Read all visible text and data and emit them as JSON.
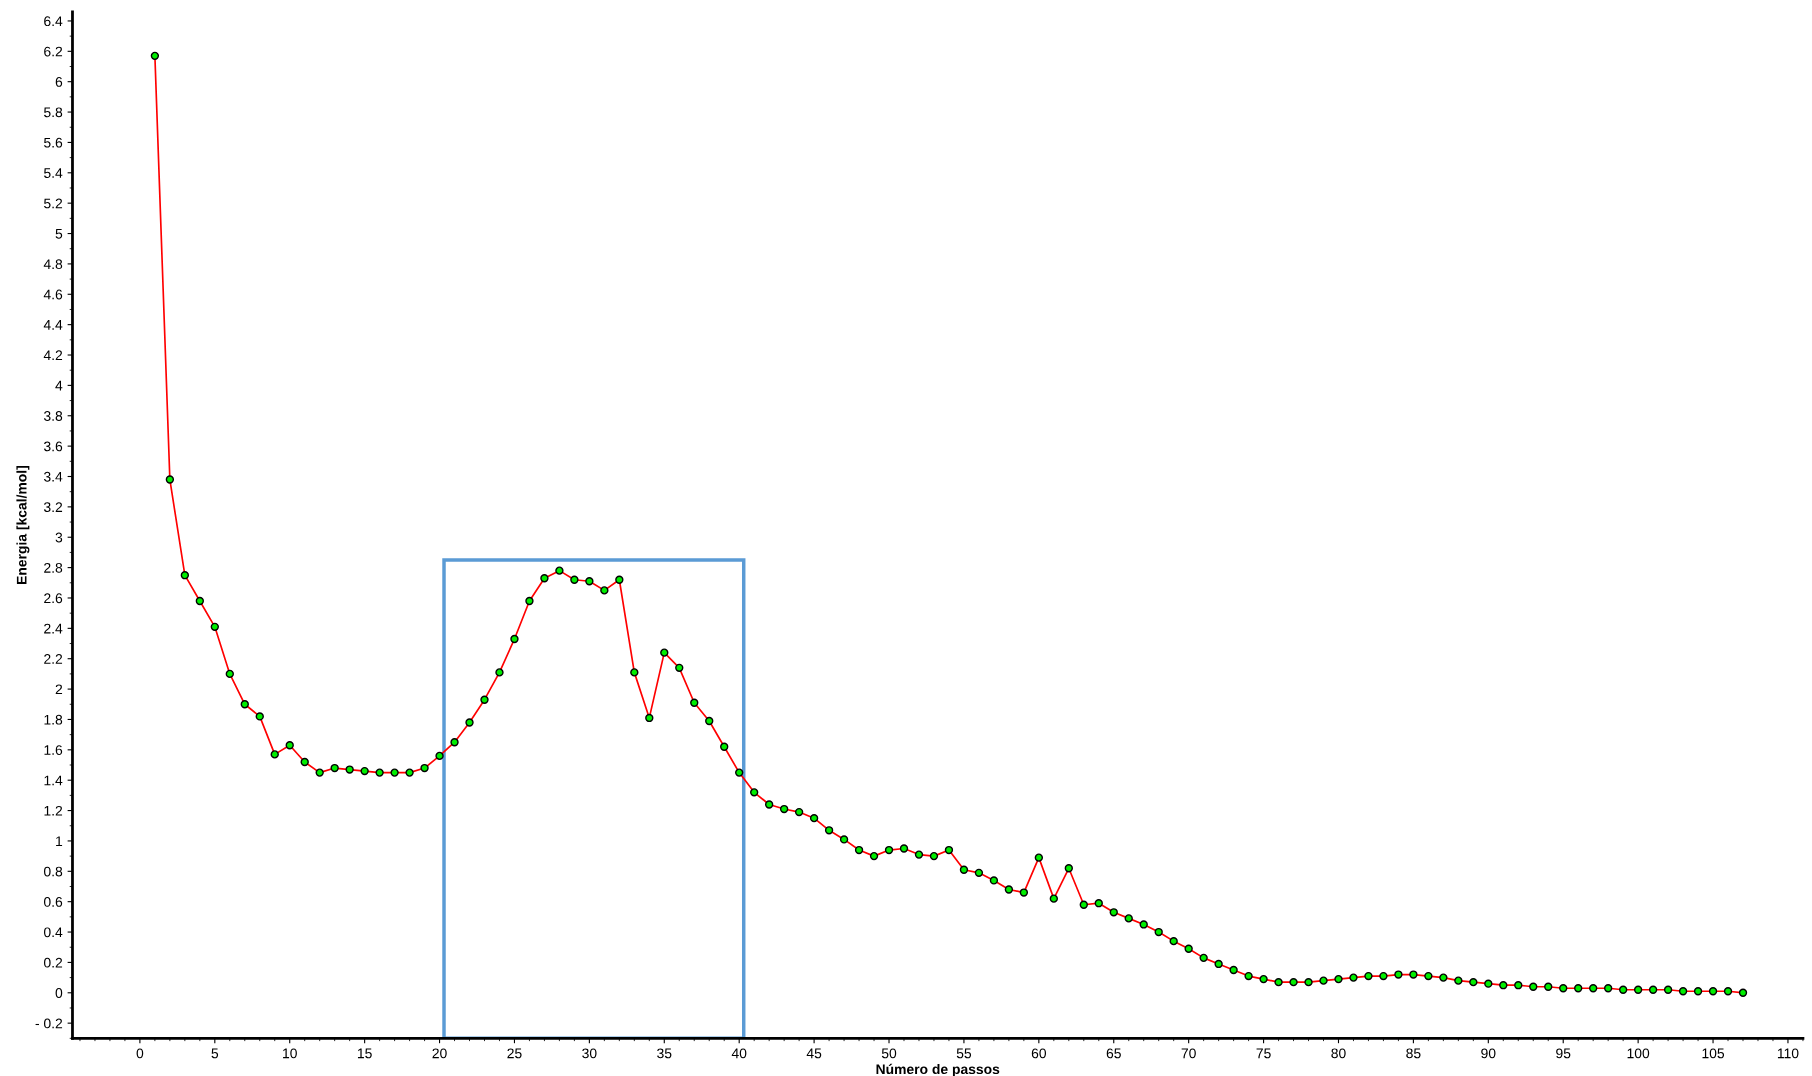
{
  "chart_data": {
    "type": "line",
    "xlabel": "Número de passos",
    "ylabel": "Energia [kcal/mol]",
    "x": [
      1,
      2,
      3,
      4,
      5,
      6,
      7,
      8,
      9,
      10,
      11,
      12,
      13,
      14,
      15,
      16,
      17,
      18,
      19,
      20,
      21,
      22,
      23,
      24,
      25,
      26,
      27,
      28,
      29,
      30,
      31,
      32,
      33,
      34,
      35,
      36,
      37,
      38,
      39,
      40,
      41,
      42,
      43,
      44,
      45,
      46,
      47,
      48,
      49,
      50,
      51,
      52,
      53,
      54,
      55,
      56,
      57,
      58,
      59,
      60,
      61,
      62,
      63,
      64,
      65,
      66,
      67,
      68,
      69,
      70,
      71,
      72,
      73,
      74,
      75,
      76,
      77,
      78,
      79,
      80,
      81,
      82,
      83,
      84,
      85,
      86,
      87,
      88,
      89,
      90,
      91,
      92,
      93,
      94,
      95,
      96,
      97,
      98,
      99,
      100,
      101,
      102,
      103,
      104,
      105,
      106,
      107
    ],
    "series": [
      {
        "color": "#ff0000",
        "values": [
          6.17,
          3.38,
          2.75,
          2.58,
          2.41,
          2.1,
          1.9,
          1.82,
          1.57,
          1.63,
          1.52,
          1.45,
          1.48,
          1.47,
          1.46,
          1.45,
          1.45,
          1.45,
          1.48,
          1.56,
          1.65,
          1.78,
          1.93,
          2.11,
          2.33,
          2.58,
          2.73,
          2.78,
          2.72,
          2.71,
          2.65,
          2.72,
          2.11,
          1.81,
          2.24,
          2.14,
          1.91,
          1.79,
          1.62,
          1.45,
          1.32,
          1.24,
          1.21,
          1.19,
          1.15,
          1.07,
          1.01,
          0.94,
          0.9,
          0.94,
          0.95,
          0.91,
          0.9,
          0.94,
          0.81,
          0.79,
          0.74,
          0.68,
          0.66,
          0.89,
          0.62,
          0.82,
          0.58,
          0.59,
          0.53,
          0.49,
          0.45,
          0.4,
          0.34,
          0.29,
          0.23,
          0.19,
          0.15,
          0.11,
          0.09,
          0.07,
          0.07,
          0.07,
          0.08,
          0.09,
          0.1,
          0.11,
          0.11,
          0.12,
          0.12,
          0.11,
          0.1,
          0.08,
          0.07,
          0.06,
          0.05,
          0.05,
          0.04,
          0.04,
          0.03,
          0.03,
          0.03,
          0.03,
          0.02,
          0.02,
          0.02,
          0.02,
          0.01,
          0.01,
          0.01,
          0.01,
          0.0
        ]
      }
    ],
    "marker": "circle",
    "line_style": "solid",
    "grid": false,
    "legend": false,
    "xlim": [
      -4.5,
      111
    ],
    "xticks": [
      0,
      5,
      10,
      15,
      20,
      25,
      30,
      35,
      40,
      45,
      50,
      55,
      60,
      65,
      70,
      75,
      80,
      85,
      90,
      95,
      100,
      105,
      110
    ],
    "ylim": [
      -0.3,
      6.46
    ],
    "yticks": [
      {
        "value": -0.2,
        "label": "- 0.2"
      },
      0,
      0.2,
      0.4,
      0.6,
      0.8,
      1,
      1.2,
      1.4,
      1.6,
      1.8,
      2,
      2.2,
      2.4,
      2.6,
      2.8,
      3,
      3.2,
      3.4,
      3.6,
      3.8,
      4,
      4.2,
      4.4,
      4.6,
      4.8,
      5,
      5.2,
      5.4,
      5.6,
      5.8,
      6,
      6.2,
      6.4
    ]
  }
}
